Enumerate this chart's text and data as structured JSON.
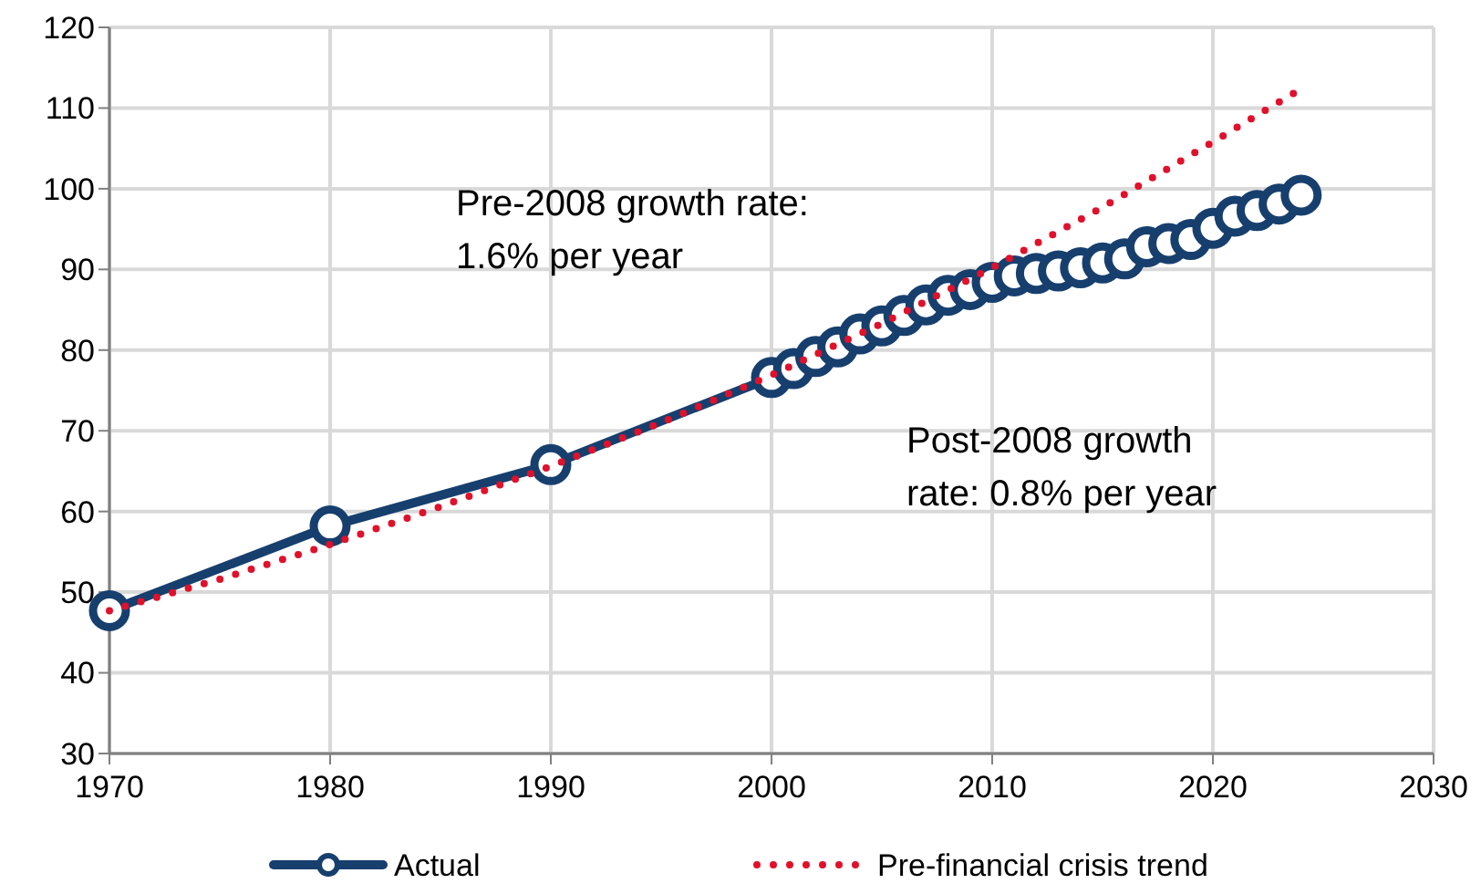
{
  "chart_data": {
    "type": "line",
    "xlim": [
      1970,
      2030
    ],
    "xticks": [
      1970,
      1980,
      1990,
      2000,
      2010,
      2020,
      2030
    ],
    "ylim": [
      30,
      120
    ],
    "yticks": [
      30,
      40,
      50,
      60,
      70,
      80,
      90,
      100,
      110,
      120
    ],
    "grid": true,
    "legend": "bottom",
    "annotations": [
      "Pre-2008 growth rate:\n1.6% per year",
      "Post-2008 growth\nrate: 0.8% per year"
    ],
    "series": [
      {
        "name": "Actual",
        "color": "#173f6e",
        "marker": "circle",
        "line_style": "solid",
        "x": [
          1970,
          1980,
          1990,
          2000,
          2001,
          2002,
          2003,
          2004,
          2005,
          2006,
          2007,
          2008,
          2009,
          2010,
          2011,
          2012,
          2013,
          2014,
          2015,
          2016,
          2017,
          2018,
          2019,
          2020,
          2021,
          2022,
          2023,
          2024
        ],
        "values": [
          47.7,
          58.2,
          65.8,
          76.6,
          77.7,
          79.2,
          80.4,
          82.0,
          83.0,
          84.3,
          85.6,
          86.8,
          87.5,
          88.4,
          89.2,
          89.5,
          89.8,
          90.2,
          90.8,
          91.3,
          92.8,
          93.2,
          93.7,
          95.1,
          96.6,
          97.3,
          98.1,
          99.2
        ]
      },
      {
        "name": "Pre-financial crisis trend",
        "color": "#e0112b",
        "marker": "none",
        "line_style": "dotted",
        "x": [
          1970,
          1975,
          1980,
          1985,
          1990,
          1995,
          2000,
          2005,
          2010,
          2015,
          2020,
          2024
        ],
        "values": [
          47.7,
          51.6,
          55.9,
          60.6,
          65.6,
          71.0,
          76.9,
          83.3,
          90.2,
          97.7,
          105.8,
          112.4
        ]
      }
    ]
  }
}
